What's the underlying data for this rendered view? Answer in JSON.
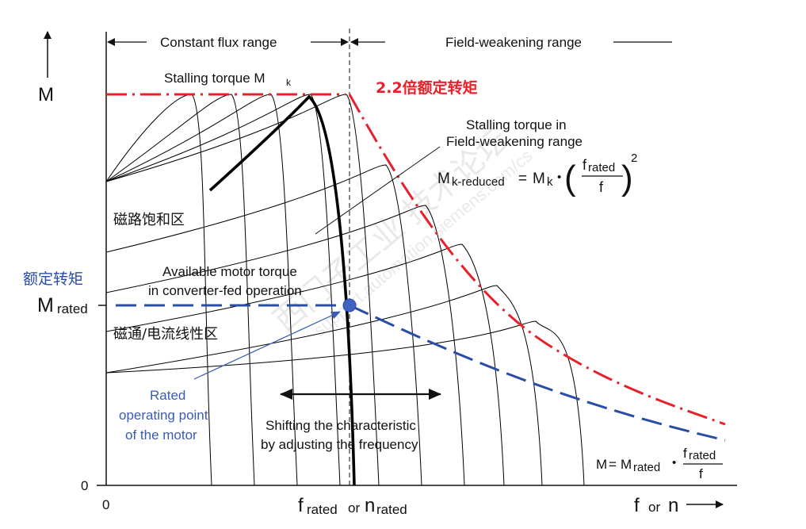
{
  "axes": {
    "y_label": "M",
    "x_label_f": "f",
    "x_label_or": "or",
    "x_label_n": "n",
    "origin_x": "0",
    "origin_y": "0",
    "m_rated_main": "M",
    "m_rated_sub": "rated",
    "f_rated_main": "f",
    "f_rated_sub": "rated",
    "f_rated_or": "or",
    "n_rated_main": "n",
    "n_rated_sub": "rated"
  },
  "ranges": {
    "constant_flux": "Constant flux range",
    "field_weakening": "Field-weakening range"
  },
  "labels": {
    "stalling_torque_main": "Stalling torque M",
    "stalling_torque_sub": "k",
    "rated_torque_2_2": "2.2倍额定转矩",
    "stalling_fw_line1": "Stalling torque in",
    "stalling_fw_line2": "Field-weakening range",
    "saturation_region": "磁路饱和区",
    "rated_torque_cn": "额定转矩",
    "available_line1": "Available motor torque",
    "available_line2": "in converter-fed operation",
    "linear_region": "磁通/电流线性区",
    "rated_op_line1": "Rated",
    "rated_op_line2": "operating point",
    "rated_op_line3": "of the  motor",
    "shifting_line1": "Shifting the characteristic",
    "shifting_line2": "by adjusting the frequency"
  },
  "formula_mk_reduced": {
    "lhs_main": "M",
    "lhs_sub": "k-reduced",
    "eq": "=",
    "mk_main": "M",
    "mk_sub": "k",
    "dot": "•",
    "frac_num": "f",
    "frac_num_sub": "rated",
    "frac_den": "f",
    "exponent": "2"
  },
  "formula_m": {
    "lhs": "M",
    "eq": "=",
    "m_main": "M",
    "m_sub": "rated",
    "dot": "•",
    "frac_num": "f",
    "frac_num_sub": "rated",
    "frac_den": "f"
  },
  "watermark": {
    "text_cn": "西门子工业 技术论坛",
    "text_url": "support.automation.siemens.com/cs"
  },
  "colors": {
    "red": "#e8202a",
    "blue": "#2a4ca6",
    "axis": "#111111",
    "curve": "#000000"
  }
}
